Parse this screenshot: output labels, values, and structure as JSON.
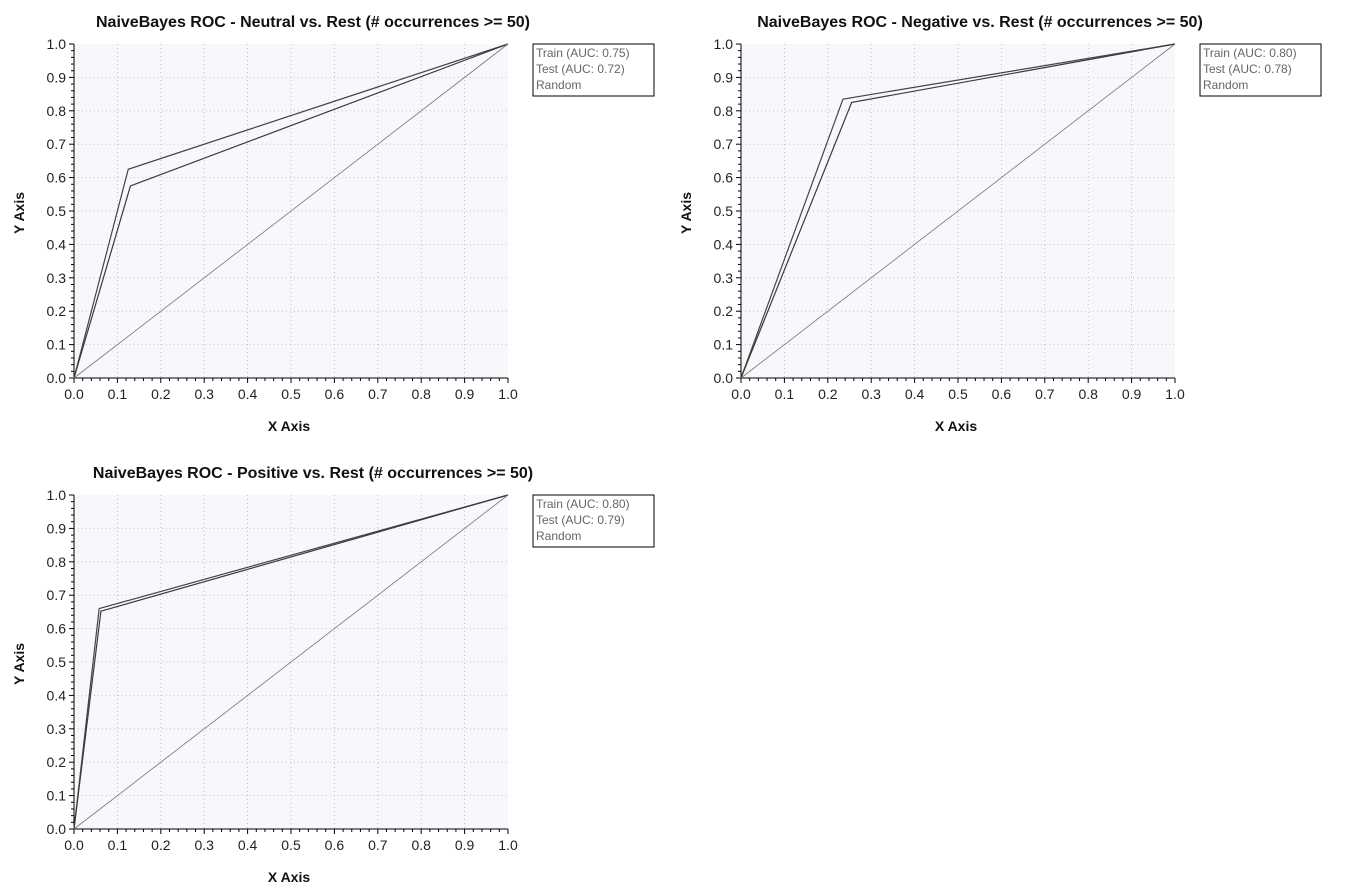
{
  "chart_data": [
    {
      "type": "line",
      "title": "NaiveBayes ROC - Neutral vs. Rest (# occurrences >= 50)",
      "xlabel": "X Axis",
      "ylabel": "Y Axis",
      "xlim": [
        0,
        1
      ],
      "ylim": [
        0,
        1
      ],
      "ticks": [
        "0.0",
        "0.1",
        "0.2",
        "0.3",
        "0.4",
        "0.5",
        "0.6",
        "0.7",
        "0.8",
        "0.9",
        "1.0"
      ],
      "grid": true,
      "legend_position": "top-right outside",
      "series": [
        {
          "name": "Train (AUC: 0.75)",
          "x": [
            0,
            0.125,
            1
          ],
          "y": [
            0,
            0.625,
            1
          ]
        },
        {
          "name": "Test (AUC: 0.72)",
          "x": [
            0,
            0.13,
            1
          ],
          "y": [
            0,
            0.575,
            1
          ]
        },
        {
          "name": "Random",
          "x": [
            0,
            1
          ],
          "y": [
            0,
            1
          ]
        }
      ]
    },
    {
      "type": "line",
      "title": "NaiveBayes ROC - Negative vs. Rest (# occurrences >= 50)",
      "xlabel": "X Axis",
      "ylabel": "Y Axis",
      "xlim": [
        0,
        1
      ],
      "ylim": [
        0,
        1
      ],
      "ticks": [
        "0.0",
        "0.1",
        "0.2",
        "0.3",
        "0.4",
        "0.5",
        "0.6",
        "0.7",
        "0.8",
        "0.9",
        "1.0"
      ],
      "grid": true,
      "legend_position": "top-right outside",
      "series": [
        {
          "name": "Train (AUC: 0.80)",
          "x": [
            0,
            0.235,
            1
          ],
          "y": [
            0,
            0.835,
            1
          ]
        },
        {
          "name": "Test (AUC: 0.78)",
          "x": [
            0,
            0.255,
            1
          ],
          "y": [
            0,
            0.825,
            1
          ]
        },
        {
          "name": "Random",
          "x": [
            0,
            1
          ],
          "y": [
            0,
            1
          ]
        }
      ]
    },
    {
      "type": "line",
      "title": "NaiveBayes ROC - Positive vs. Rest (# occurrences >= 50)",
      "xlabel": "X Axis",
      "ylabel": "Y Axis",
      "xlim": [
        0,
        1
      ],
      "ylim": [
        0,
        1
      ],
      "ticks": [
        "0.0",
        "0.1",
        "0.2",
        "0.3",
        "0.4",
        "0.5",
        "0.6",
        "0.7",
        "0.8",
        "0.9",
        "1.0"
      ],
      "grid": true,
      "legend_position": "top-right outside",
      "series": [
        {
          "name": "Train (AUC: 0.80)",
          "x": [
            0,
            0.058,
            1
          ],
          "y": [
            0,
            0.66,
            1
          ]
        },
        {
          "name": "Test (AUC: 0.79)",
          "x": [
            0,
            0.062,
            1
          ],
          "y": [
            0,
            0.652,
            1
          ]
        },
        {
          "name": "Random",
          "x": [
            0,
            1
          ],
          "y": [
            0,
            1
          ]
        }
      ]
    }
  ],
  "colors": {
    "plot_background": "#f7f8fc",
    "grid": "#b7b7b7",
    "axis": "#000000",
    "train_line": "#444444",
    "test_line": "#3a3a3a",
    "random_line": "#777777",
    "legend_border": "#000000",
    "legend_text": "#666666"
  }
}
